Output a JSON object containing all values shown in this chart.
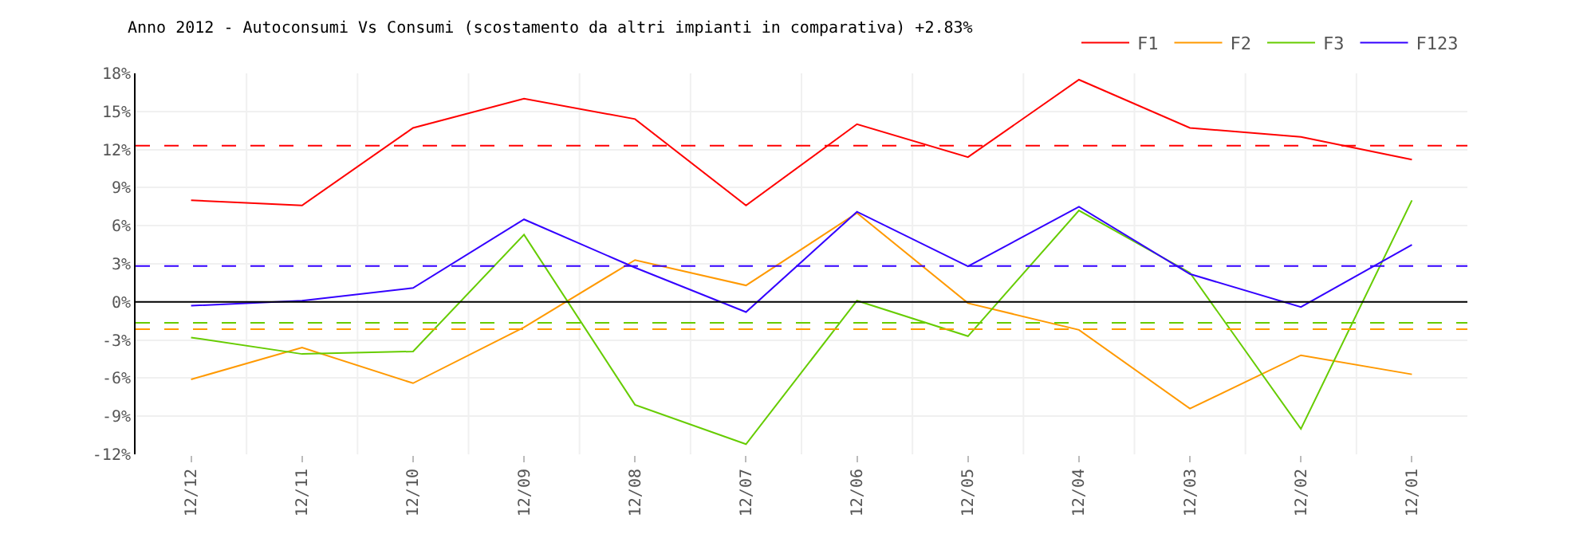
{
  "chart_data": {
    "type": "line",
    "title": "Anno 2012 - Autoconsumi Vs Consumi (scostamento da altri impianti in comparativa) +2.83%",
    "categories": [
      "12/12",
      "12/11",
      "12/10",
      "12/09",
      "12/08",
      "12/07",
      "12/06",
      "12/05",
      "12/04",
      "12/03",
      "12/02",
      "12/01"
    ],
    "series": [
      {
        "name": "F1",
        "color": "#ff0000",
        "values": [
          8.0,
          7.6,
          13.7,
          16.0,
          14.4,
          7.6,
          14.0,
          11.4,
          17.5,
          13.7,
          13.0,
          11.2
        ]
      },
      {
        "name": "F2",
        "color": "#ff9900",
        "values": [
          -6.1,
          -3.6,
          -6.4,
          -2.0,
          3.3,
          1.3,
          7.0,
          -0.1,
          -2.2,
          -8.4,
          -4.2,
          -5.7
        ]
      },
      {
        "name": "F3",
        "color": "#66cc00",
        "values": [
          -2.8,
          -4.1,
          -3.9,
          5.3,
          -8.1,
          -11.2,
          0.1,
          -2.7,
          7.2,
          2.3,
          -10.0,
          8.0
        ]
      },
      {
        "name": "F123",
        "color": "#3300ff",
        "values": [
          -0.3,
          0.1,
          1.1,
          6.5,
          2.7,
          -0.8,
          7.1,
          2.8,
          7.5,
          2.2,
          -0.4,
          4.5
        ]
      }
    ],
    "ylim": [
      -12,
      18
    ],
    "yticks": [
      {
        "value": -12,
        "label": "-12%"
      },
      {
        "value": -9,
        "label": "-9%"
      },
      {
        "value": -6,
        "label": "-6%"
      },
      {
        "value": -3,
        "label": "-3%"
      },
      {
        "value": 0,
        "label": "0%"
      },
      {
        "value": 3,
        "label": "3%"
      },
      {
        "value": 6,
        "label": "6%"
      },
      {
        "value": 9,
        "label": "9%"
      },
      {
        "value": 12,
        "label": "12%"
      },
      {
        "value": 15,
        "label": "15%"
      },
      {
        "value": 18,
        "label": "18%"
      }
    ],
    "ref_lines": [
      {
        "axis": "y",
        "value": 0,
        "color": "#000000",
        "line_style": "solid"
      },
      {
        "axis": "y",
        "value": 12.3,
        "color": "#ff0000",
        "line_style": "dashed"
      },
      {
        "axis": "y",
        "value": 2.83,
        "color": "#3300ff",
        "line_style": "dashed"
      },
      {
        "axis": "y",
        "value": -1.65,
        "color": "#66cc00",
        "line_style": "dashed"
      },
      {
        "axis": "y",
        "value": -2.15,
        "color": "#ff9900",
        "line_style": "dashed"
      }
    ],
    "grid": true,
    "legend": "top right",
    "marker": "none",
    "line_style": "solid"
  }
}
